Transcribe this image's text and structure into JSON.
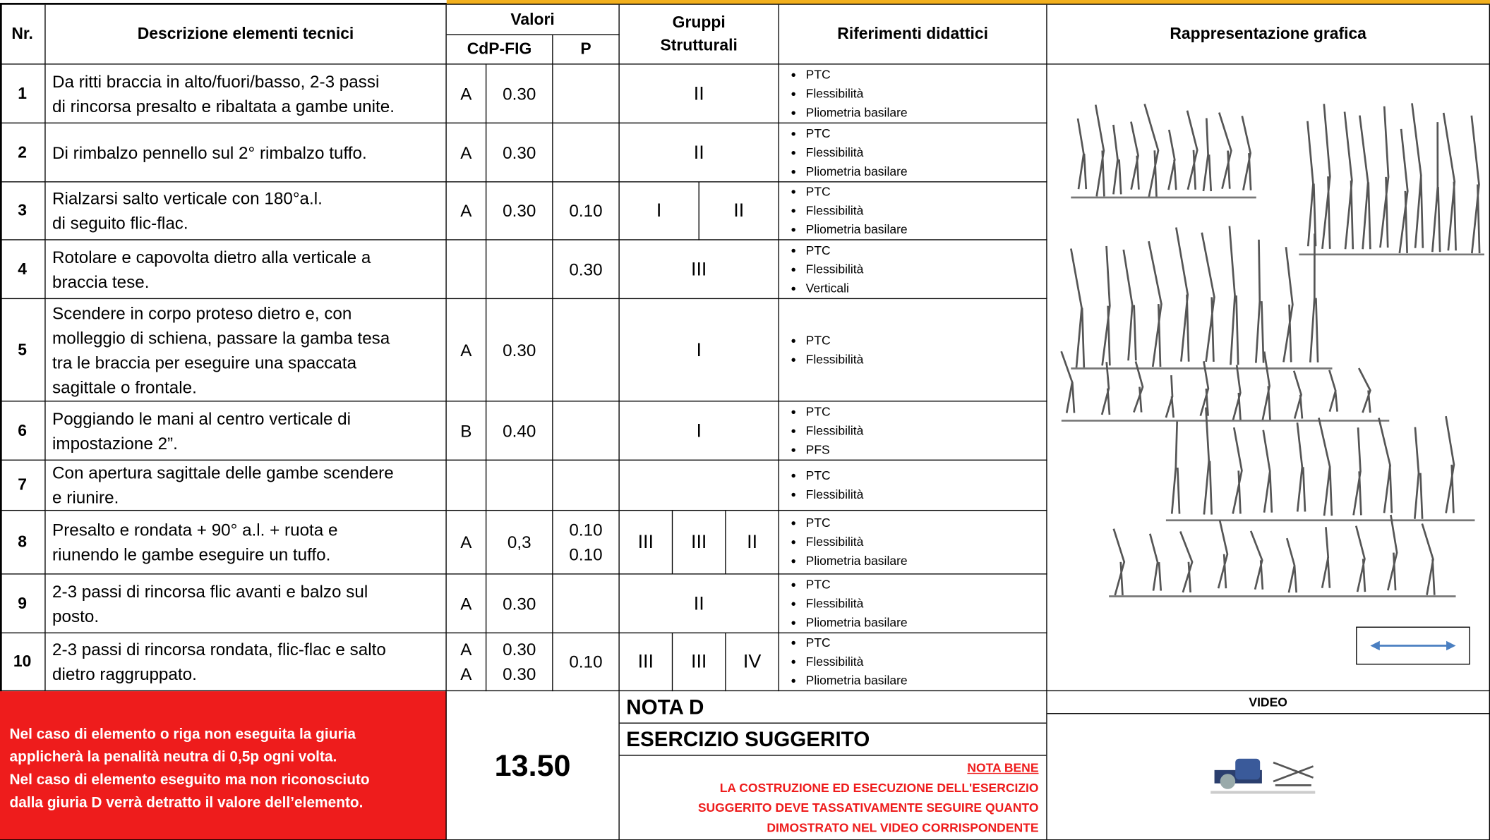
{
  "header": {
    "nr": "Nr.",
    "descrizione": "Descrizione elementi tecnici",
    "valori": "Valori",
    "cdp": "CdP-FIG",
    "p": "P",
    "gruppi": [
      "Gruppi",
      "Strutturali"
    ],
    "riferimenti": "Riferimenti didattici",
    "rappresentazione": "Rappresentazione grafica"
  },
  "rows": [
    {
      "nr": "1",
      "desc": [
        "Da ritti braccia in alto/fuori/basso, 2-3 passi",
        "di rincorsa presalto e ribaltata a gambe unite."
      ],
      "grade": "A",
      "value": "0.30",
      "p": "",
      "groups": [
        "II"
      ],
      "refs": [
        "PTC",
        "Flessibilità",
        "Pliometria basilare"
      ]
    },
    {
      "nr": "2",
      "desc": [
        "Di rimbalzo pennello sul 2° rimbalzo tuffo."
      ],
      "grade": "A",
      "value": "0.30",
      "p": "",
      "groups": [
        "II"
      ],
      "refs": [
        "PTC",
        "Flessibilità",
        "Pliometria basilare"
      ]
    },
    {
      "nr": "3",
      "desc": [
        "Rialzarsi salto verticale con 180°a.l.",
        "di seguito flic-flac."
      ],
      "grade": "A",
      "value": "0.30",
      "p": "0.10",
      "groups": [
        "I",
        "II"
      ],
      "refs": [
        "PTC",
        "Flessibilità",
        "Pliometria basilare"
      ]
    },
    {
      "nr": "4",
      "desc": [
        "Rotolare e capovolta dietro alla verticale a",
        "braccia tese."
      ],
      "grade": "",
      "value": "",
      "p": "0.30",
      "groups": [
        "III"
      ],
      "refs": [
        "PTC",
        "Flessibilità",
        "Verticali"
      ]
    },
    {
      "nr": "5",
      "desc": [
        "Scendere in corpo proteso dietro e, con",
        "molleggio di schiena, passare la gamba tesa",
        "tra le braccia per eseguire una spaccata",
        "sagittale o frontale."
      ],
      "grade": "A",
      "value": "0.30",
      "p": "",
      "groups": [
        "I"
      ],
      "refs": [
        "PTC",
        "Flessibilità"
      ]
    },
    {
      "nr": "6",
      "desc": [
        "Poggiando le mani al centro verticale di",
        "impostazione 2”."
      ],
      "grade": "B",
      "value": "0.40",
      "p": "",
      "groups": [
        "I"
      ],
      "refs": [
        "PTC",
        "Flessibilità",
        "PFS"
      ]
    },
    {
      "nr": "7",
      "desc": [
        "Con apertura sagittale delle gambe scendere",
        "e riunire."
      ],
      "grade": "",
      "value": "",
      "p": "",
      "groups": [
        ""
      ],
      "refs": [
        "PTC",
        "Flessibilità"
      ]
    },
    {
      "nr": "8",
      "desc": [
        "Presalto e rondata + 90° a.l.  + ruota  e",
        "riunendo le gambe eseguire un tuffo."
      ],
      "grade": "A",
      "value": "0,3",
      "p": [
        "0.10",
        "0.10"
      ],
      "groups": [
        "III",
        "III",
        "II"
      ],
      "refs": [
        "PTC",
        "Flessibilità",
        "Pliometria basilare"
      ]
    },
    {
      "nr": "9",
      "desc": [
        "2-3 passi di rincorsa flic avanti e balzo sul",
        "posto."
      ],
      "grade": "A",
      "value": "0.30",
      "p": "",
      "groups": [
        "II"
      ],
      "refs": [
        "PTC",
        "Flessibilità",
        "Pliometria basilare"
      ]
    },
    {
      "nr": "10",
      "desc": [
        "2-3 passi di rincorsa rondata, flic-flac e salto",
        "dietro raggruppato."
      ],
      "grade": [
        "A",
        "A"
      ],
      "value": [
        "0.30",
        "0.30"
      ],
      "p": "0.10",
      "groups": [
        "III",
        "III",
        "IV"
      ],
      "refs": [
        "PTC",
        "Flessibilità",
        "Pliometria basilare"
      ]
    }
  ],
  "footer": {
    "note": [
      "Nel caso di elemento o riga non eseguita la giuria",
      "applicherà la penalità neutra di 0,5p ogni volta.",
      "Nel caso di elemento eseguito ma non riconosciuto",
      "dalla giuria D verrà detratto il valore dell’elemento."
    ],
    "total": "13.50",
    "nota_d": "NOTA D",
    "esercizio": "ESERCIZIO SUGGERITO",
    "nota_bene": "NOTA BENE",
    "nota_bene_text": [
      "LA COSTRUZIONE ED ESECUZIONE DELL'ESERCIZIO",
      "SUGGERITO DEVE TASSATIVAMENTE SEGUIRE QUANTO",
      "DIMOSTRATO NEL VIDEO CORRISPONDENTE"
    ],
    "video": "VIDEO"
  }
}
